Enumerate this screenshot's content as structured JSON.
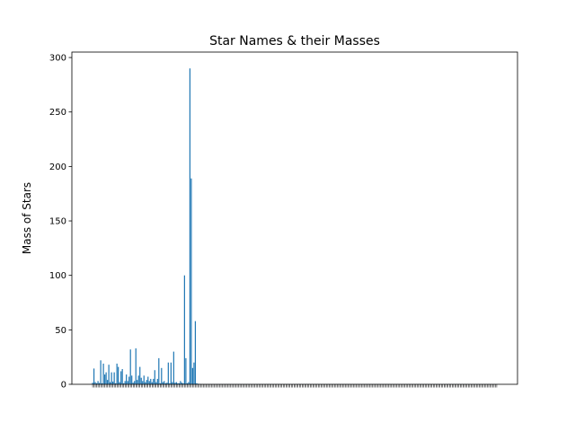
{
  "chart_data": {
    "type": "bar",
    "title": "Star Names & their Masses",
    "xlabel": "",
    "ylabel": "Mass of Stars",
    "ylim": [
      0,
      305
    ],
    "yticks": [
      0,
      50,
      100,
      150,
      200,
      250,
      300
    ],
    "grid": false,
    "bar_color": "#1f77b4",
    "values": [
      1.5,
      14.5,
      2.0,
      1.0,
      3.0,
      1.2,
      22.0,
      1.0,
      19.0,
      9.0,
      11.0,
      4.0,
      18.0,
      2.0,
      11.0,
      2.5,
      11.0,
      1.0,
      19.0,
      16.0,
      2.0,
      12.0,
      14.0,
      1.0,
      3.0,
      9.0,
      3.0,
      7.0,
      32.0,
      8.0,
      1.5,
      3.0,
      33.0,
      4.0,
      8.0,
      16.0,
      6.0,
      3.0,
      8.0,
      2.0,
      4.0,
      7.0,
      3.0,
      5.0,
      2.0,
      5.0,
      13.0,
      2.0,
      5.0,
      24.0,
      1.0,
      15.0,
      2.0,
      3.0,
      1.0,
      1.5,
      20.0,
      1.0,
      20.0,
      2.0,
      30.0,
      1.5,
      2.0,
      1.0,
      1.0,
      3.0,
      1.5,
      1.0,
      100.0,
      24.0,
      1.0,
      2.0,
      290.0,
      189.0,
      15.0,
      20.0,
      58.0,
      1.0,
      0.5,
      0.3,
      0.2,
      0.1,
      0.1,
      0.1,
      0.1,
      0.1,
      0.1,
      0.1,
      0.1,
      0.1,
      0.1,
      0.1,
      0.1,
      0.1,
      0.1,
      0.1,
      0.1,
      0.1,
      0.1,
      0.1,
      0.1,
      0.1,
      0.1,
      0.1,
      0.1,
      0.1,
      0.1,
      0.1,
      0.1,
      0.1,
      0.1,
      0.1,
      0.1,
      0.1,
      0.1,
      0.1,
      0.1,
      0.1,
      0.1,
      0.1,
      0.1,
      0.1,
      0.1,
      0.1,
      0.1,
      0.1,
      0.1,
      0.1,
      0.1,
      0.1,
      0.1,
      0.1,
      0.1,
      0.1,
      0.1,
      0.1,
      0.1,
      0.1,
      0.1,
      0.1,
      0.1,
      0.1,
      0.1,
      0.1,
      0.1,
      0.1,
      0.1,
      0.1,
      0.1,
      0.1,
      0.1,
      0.1,
      0.1,
      0.1,
      0.1,
      0.1,
      0.1,
      0.1,
      0.1,
      0.1,
      0.1,
      0.1,
      0.1,
      0.1,
      0.1,
      0.1,
      0.1,
      0.1,
      0.1,
      0.1,
      0.1,
      0.1,
      0.1,
      0.1,
      0.1,
      0.1,
      0.1,
      0.1,
      0.1,
      0.1,
      0.1,
      0.1,
      0.1,
      0.1,
      0.1,
      0.1,
      0.1,
      0.1,
      0.1,
      0.1,
      0.1,
      0.1,
      0.1,
      0.1,
      0.1,
      0.1,
      0.1,
      0.1,
      0.1,
      0.1,
      0.1,
      0.1,
      0.1,
      0.1,
      0.1,
      0.1,
      0.1,
      0.1,
      0.1,
      0.1,
      0.1,
      0.1,
      0.1,
      0.1,
      0.1,
      0.1,
      0.1,
      0.1,
      0.1,
      0.1,
      0.1,
      0.1,
      0.1,
      0.1,
      0.1,
      0.1,
      0.1,
      0.1,
      0.1,
      0.1,
      0.1,
      0.1,
      0.1,
      0.1,
      0.1,
      0.1,
      0.1,
      0.1,
      0.1,
      0.1,
      0.1,
      0.1,
      0.1,
      0.1,
      0.1,
      0.1,
      0.1,
      0.1,
      0.1,
      0.1,
      0.1,
      0.1,
      0.1,
      0.1,
      0.1,
      0.1,
      0.1,
      0.1,
      0.1,
      0.1,
      0.1,
      0.1,
      0.1,
      0.1,
      0.1,
      0.1,
      0.1,
      0.1,
      0.1,
      0.1,
      0.1,
      0.1,
      0.1,
      0.1,
      0.1,
      0.1,
      0.1,
      0.1,
      0.1,
      0.1,
      0.1,
      0.1,
      0.1,
      0.1,
      0.1,
      0.1,
      0.1,
      0.1,
      0.1,
      0.1,
      0.1,
      0.1,
      0.1,
      0.1,
      0.1,
      0.1,
      0.1,
      0.1,
      0.1,
      0.1
    ]
  }
}
